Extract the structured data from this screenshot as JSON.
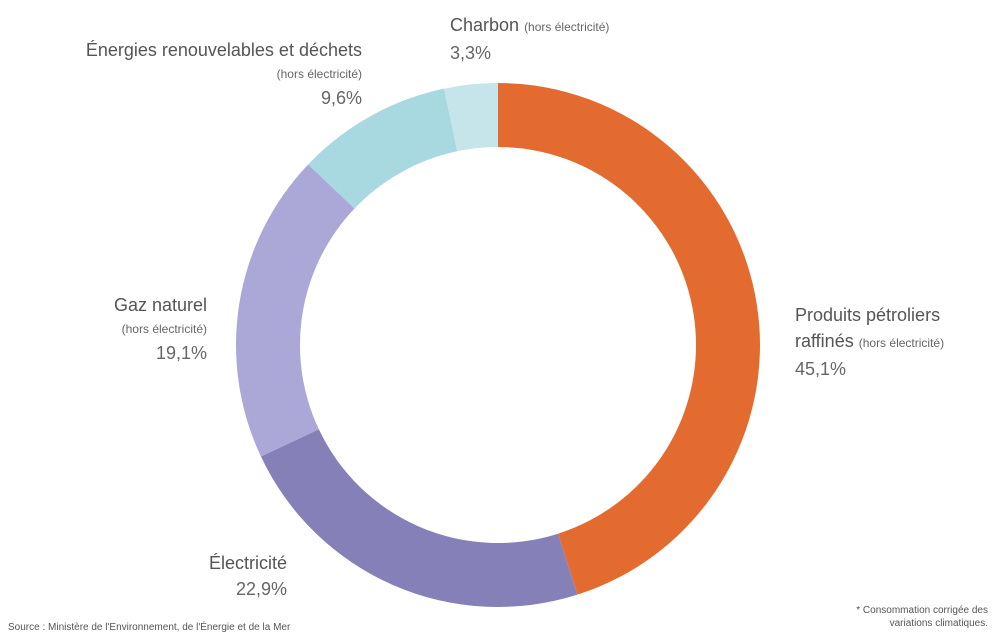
{
  "chart_data": {
    "type": "donut",
    "categories": [
      "Produits pétroliers raffinés",
      "Électricité",
      "Gaz naturel",
      "Énergies renouvelables et déchets",
      "Charbon"
    ],
    "qualifiers": [
      "(hors électricité)",
      null,
      "(hors électricité)",
      "(hors électricité)",
      "(hors électricité)"
    ],
    "values": [
      45.1,
      22.9,
      19.1,
      9.6,
      3.3
    ],
    "value_labels": [
      "45,1%",
      "22,9%",
      "19,1%",
      "9,6%",
      "3,3%"
    ],
    "colors": [
      "#e46b30",
      "#8580b8",
      "#aba8d8",
      "#a8d8e0",
      "#c5e5ea"
    ],
    "source": "Source : Ministère de l'Environnement, de l'Énergie et de la Mer",
    "note": "* Consommation corrigée des variations climatiques."
  }
}
